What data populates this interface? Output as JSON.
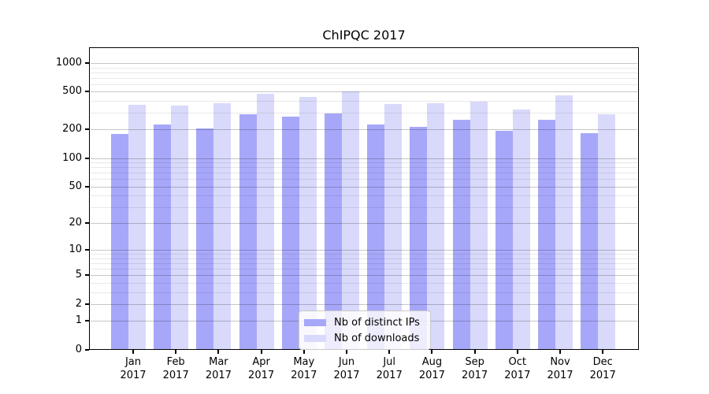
{
  "title": "ChIPQC 2017",
  "chart_data": {
    "type": "bar",
    "title": "ChIPQC 2017",
    "xlabel": "",
    "ylabel": "",
    "y_scale": "log1p",
    "ylim": [
      0,
      1450
    ],
    "grid": true,
    "legend_position": "lower-center-inside",
    "categories": [
      {
        "label": "Jan",
        "sublabel": "2017"
      },
      {
        "label": "Feb",
        "sublabel": "2017"
      },
      {
        "label": "Mar",
        "sublabel": "2017"
      },
      {
        "label": "Apr",
        "sublabel": "2017"
      },
      {
        "label": "May",
        "sublabel": "2017"
      },
      {
        "label": "Jun",
        "sublabel": "2017"
      },
      {
        "label": "Jul",
        "sublabel": "2017"
      },
      {
        "label": "Aug",
        "sublabel": "2017"
      },
      {
        "label": "Sep",
        "sublabel": "2017"
      },
      {
        "label": "Oct",
        "sublabel": "2017"
      },
      {
        "label": "Nov",
        "sublabel": "2017"
      },
      {
        "label": "Dec",
        "sublabel": "2017"
      }
    ],
    "series": [
      {
        "name": "Nb of distinct IPs",
        "color": "#a7a7fa",
        "values": [
          180,
          227,
          205,
          291,
          273,
          295,
          226,
          212,
          253,
          196,
          252,
          185
        ]
      },
      {
        "name": "Nb of downloads",
        "color": "#d9d9fb",
        "values": [
          365,
          359,
          381,
          480,
          445,
          505,
          370,
          380,
          395,
          328,
          462,
          290
        ]
      }
    ],
    "y_major_ticks": [
      0,
      1,
      2,
      5,
      10,
      20,
      50,
      100,
      200,
      500,
      1000
    ],
    "y_minor_gridlines": [
      3,
      4,
      6,
      7,
      8,
      9,
      30,
      40,
      60,
      70,
      80,
      90,
      300,
      400,
      600,
      700,
      800,
      900
    ]
  },
  "colors": {
    "background": "#ffffff",
    "frame": "#000000",
    "grid_major": "rgba(0,0,0,0.22)",
    "grid_minor": "rgba(0,0,0,0.09)",
    "text": "#000000",
    "legend_border": "#c9c9c9"
  }
}
